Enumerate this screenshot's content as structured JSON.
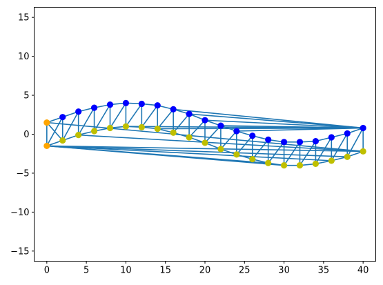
{
  "chart_data": {
    "type": "scatter",
    "title": "",
    "xlabel": "",
    "ylabel": "",
    "xlim": [
      -1.6,
      41.6
    ],
    "ylim": [
      -16.3,
      16.3
    ],
    "xticks": [
      0,
      5,
      10,
      15,
      20,
      25,
      30,
      35,
      40
    ],
    "yticks": [
      -15,
      -10,
      -5,
      0,
      5,
      10,
      15
    ],
    "grid": false,
    "colors": {
      "edge": "#1f77b4",
      "upper_points": "#0000ff",
      "lower_points": "#bfbf00",
      "support_points": "#ffa500"
    },
    "series": [
      {
        "role": "upper_chord",
        "x": [
          2,
          4,
          6,
          8,
          10,
          12,
          14,
          16,
          18,
          20,
          22,
          24,
          26,
          28,
          30,
          32,
          34,
          36,
          38,
          40
        ],
        "y": [
          2.2,
          2.9,
          3.4,
          3.8,
          4.0,
          3.9,
          3.7,
          3.2,
          2.6,
          1.8,
          1.1,
          0.4,
          -0.2,
          -0.7,
          -1.0,
          -1.0,
          -0.9,
          -0.4,
          0.1,
          0.8
        ]
      },
      {
        "role": "lower_chord",
        "x": [
          2,
          4,
          6,
          8,
          10,
          12,
          14,
          16,
          18,
          20,
          22,
          24,
          26,
          28,
          30,
          32,
          34,
          36,
          38,
          40
        ],
        "y": [
          -0.8,
          -0.1,
          0.4,
          0.8,
          1.0,
          0.9,
          0.7,
          0.2,
          -0.4,
          -1.1,
          -1.9,
          -2.6,
          -3.2,
          -3.7,
          -4.0,
          -4.0,
          -3.8,
          -3.4,
          -2.9,
          -2.2
        ]
      },
      {
        "role": "supports",
        "x": [
          0,
          0
        ],
        "y": [
          1.5,
          -1.5
        ]
      }
    ]
  }
}
